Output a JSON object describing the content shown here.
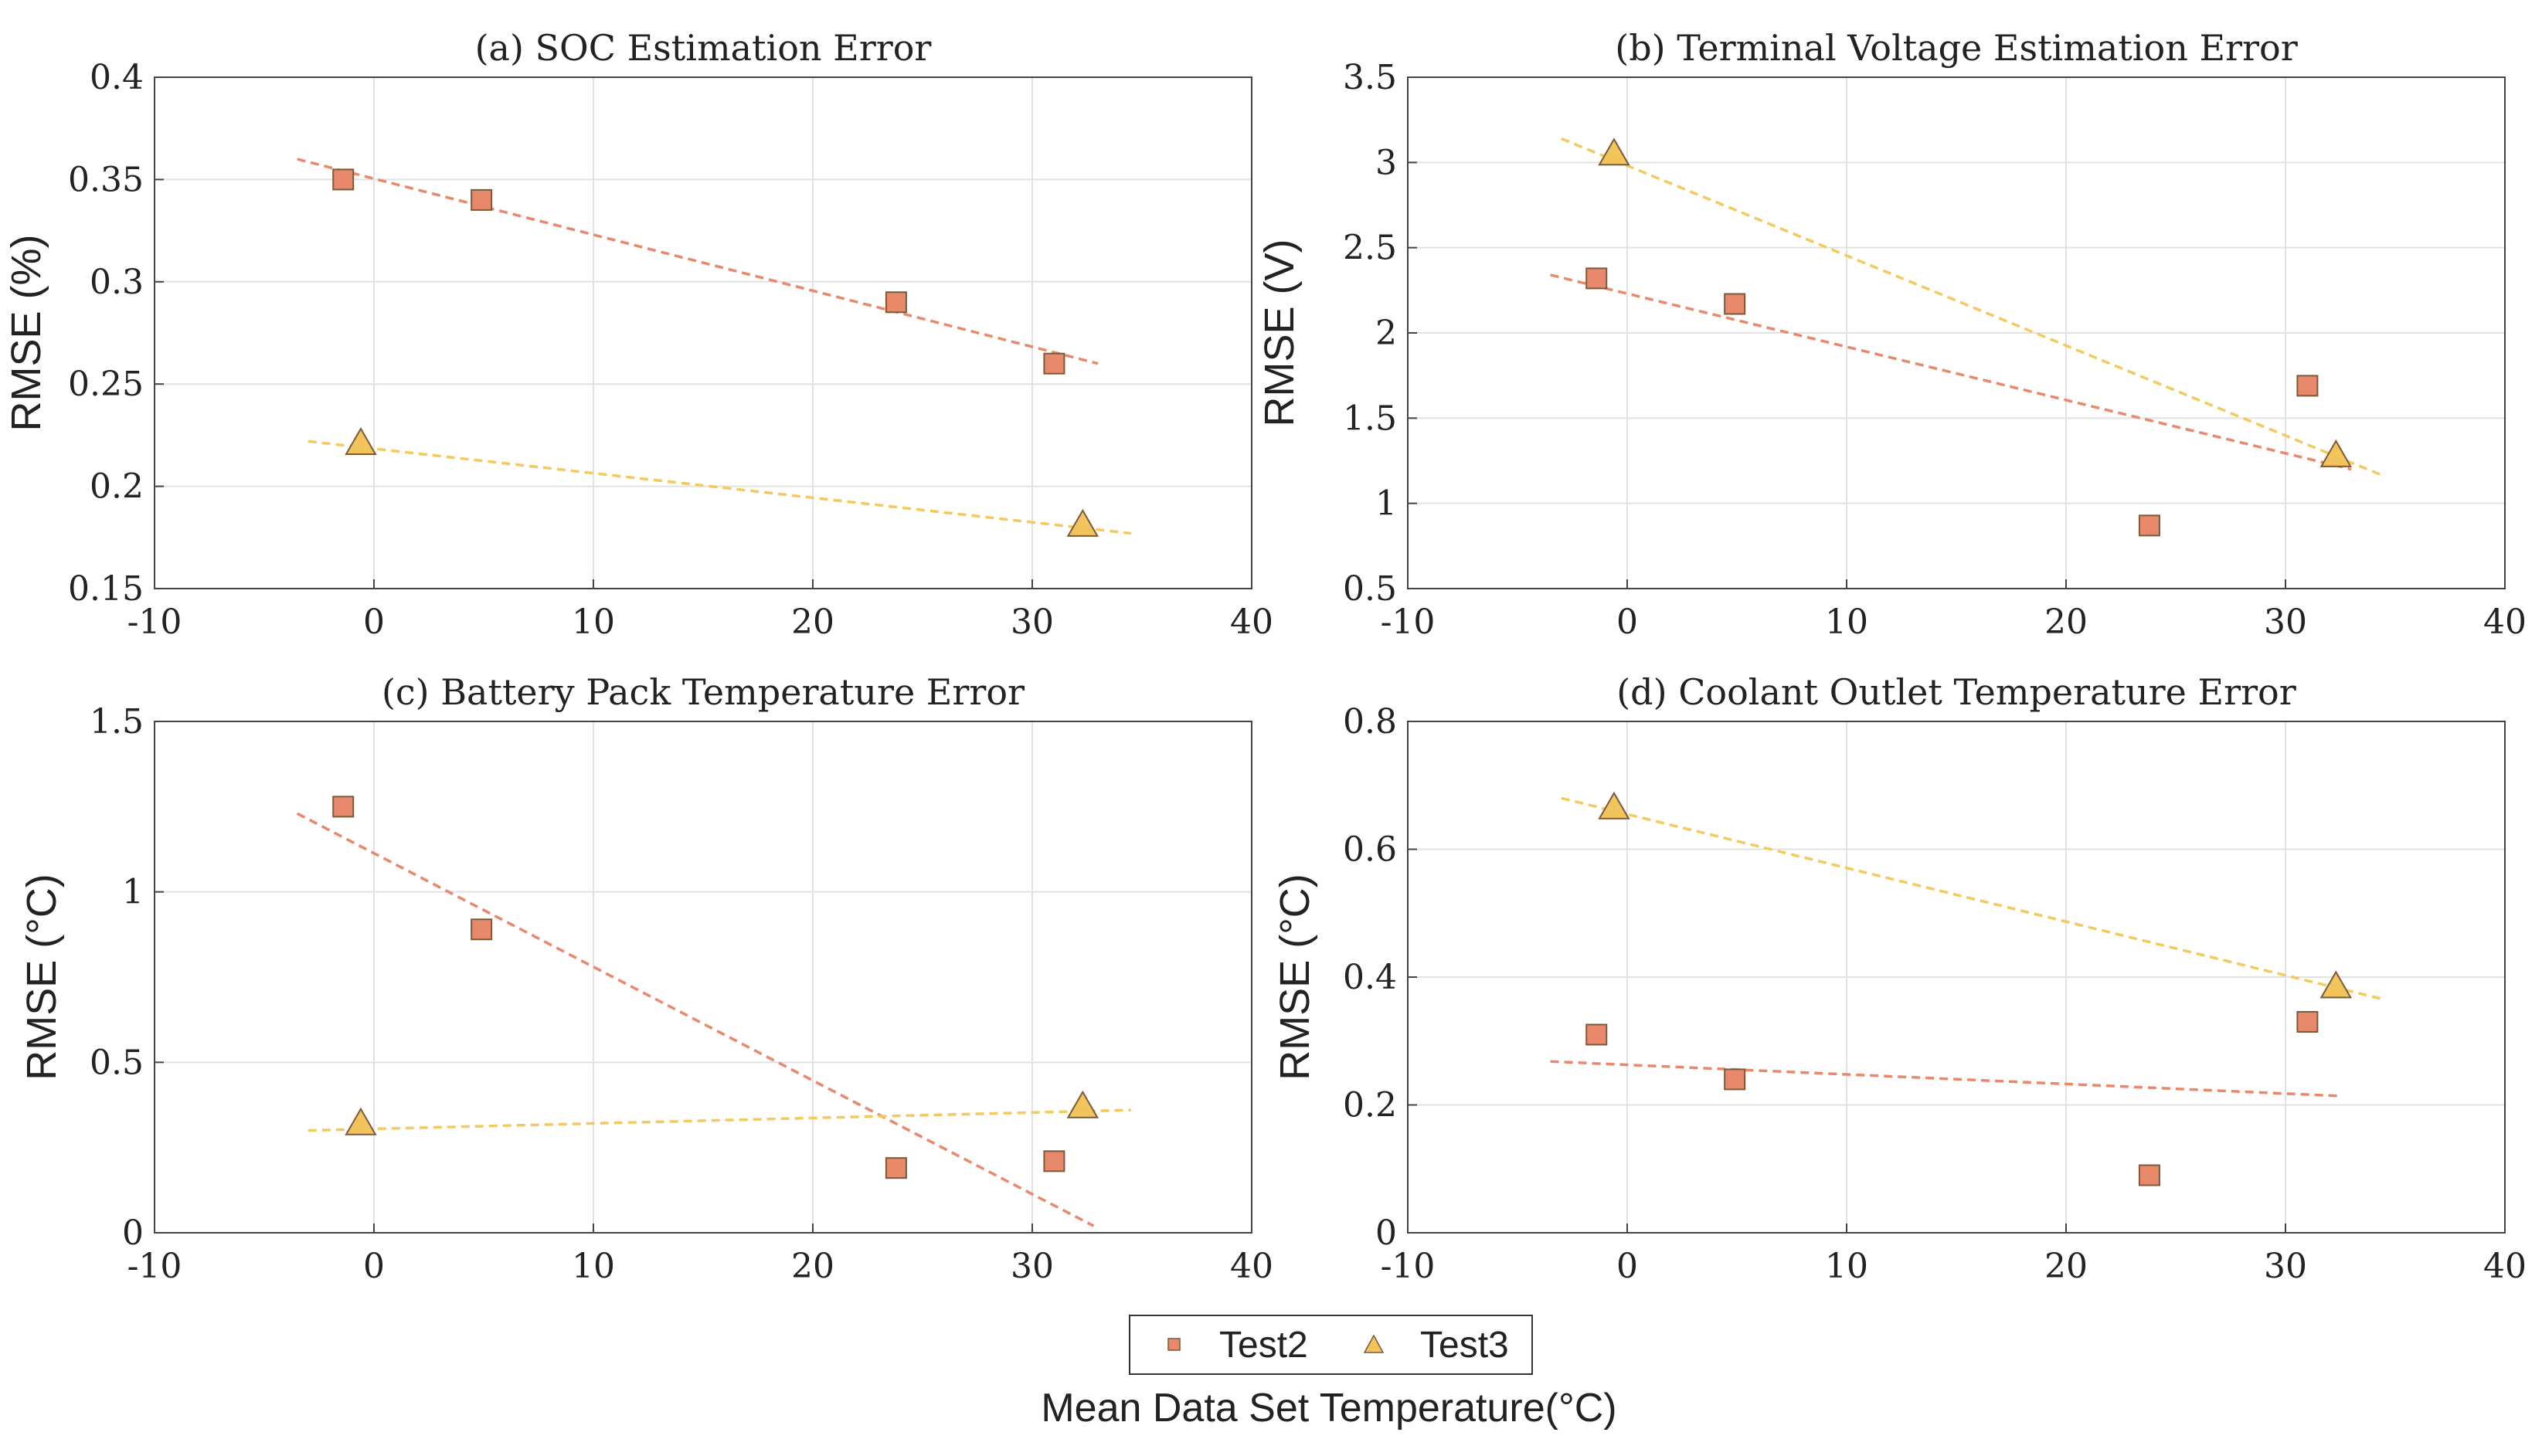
{
  "figure": {
    "xlabel": "Mean Data Set Temperature(°C)",
    "legend": [
      {
        "name": "Test2",
        "marker": "square",
        "color": "#e8896b"
      },
      {
        "name": "Test3",
        "marker": "triangle",
        "color": "#f2c45c"
      }
    ],
    "colors": {
      "test2_line": "#e8896b",
      "test3_line": "#f4c95e",
      "marker_edge": "#7a5a3a",
      "grid": "#e2e2e2",
      "axis": "#444444"
    }
  },
  "chart_data": [
    {
      "type": "scatter",
      "title": "(a) SOC Estimation Error",
      "xlabel": "Mean Data Set Temperature(°C)",
      "ylabel": "RMSE (%)",
      "xlim": [
        -10,
        40
      ],
      "ylim": [
        0.15,
        0.4
      ],
      "xticks": [
        -10,
        0,
        10,
        20,
        30,
        40
      ],
      "xtick_labels": [
        "-10",
        "0",
        "10",
        "20",
        "30",
        "40"
      ],
      "yticks": [
        0.15,
        0.2,
        0.25,
        0.3,
        0.35,
        0.4
      ],
      "ytick_labels": [
        "0.15",
        "0.2",
        "0.25",
        "0.3",
        "0.35",
        "0.4"
      ],
      "grid": true,
      "series": [
        {
          "name": "Test2",
          "marker": "square",
          "points": [
            [
              -1.4,
              0.35
            ],
            [
              4.9,
              0.34
            ],
            [
              23.8,
              0.29
            ],
            [
              31.0,
              0.26
            ]
          ],
          "trend": [
            [
              -3.5,
              0.36
            ],
            [
              33.0,
              0.26
            ]
          ]
        },
        {
          "name": "Test3",
          "marker": "triangle",
          "points": [
            [
              -0.6,
              0.221
            ],
            [
              32.3,
              0.181
            ]
          ],
          "trend": [
            [
              -3.0,
              0.222
            ],
            [
              34.5,
              0.177
            ]
          ]
        }
      ]
    },
    {
      "type": "scatter",
      "title": "(b) Terminal Voltage Estimation Error",
      "xlabel": "Mean Data Set Temperature(°C)",
      "ylabel": "RMSE (V)",
      "xlim": [
        -10,
        40
      ],
      "ylim": [
        0.5,
        3.5
      ],
      "xticks": [
        -10,
        0,
        10,
        20,
        30,
        40
      ],
      "xtick_labels": [
        "-10",
        "0",
        "10",
        "20",
        "30",
        "40"
      ],
      "yticks": [
        0.5,
        1,
        1.5,
        2,
        2.5,
        3,
        3.5
      ],
      "ytick_labels": [
        "0.5",
        "1",
        "1.5",
        "2",
        "2.5",
        "3",
        "3.5"
      ],
      "grid": true,
      "series": [
        {
          "name": "Test2",
          "marker": "square",
          "points": [
            [
              -1.4,
              2.32
            ],
            [
              4.9,
              2.17
            ],
            [
              23.8,
              0.87
            ],
            [
              31.0,
              1.69
            ]
          ],
          "trend": [
            [
              -3.5,
              2.34
            ],
            [
              33.0,
              1.2
            ]
          ]
        },
        {
          "name": "Test3",
          "marker": "triangle",
          "points": [
            [
              -0.6,
              3.05
            ],
            [
              32.3,
              1.28
            ]
          ],
          "trend": [
            [
              -3.0,
              3.14
            ],
            [
              34.5,
              1.16
            ]
          ]
        }
      ]
    },
    {
      "type": "scatter",
      "title": "(c) Battery Pack Temperature Error",
      "xlabel": "Mean Data Set Temperature(°C)",
      "ylabel": "RMSE (°C)",
      "xlim": [
        -10,
        40
      ],
      "ylim": [
        0,
        1.5
      ],
      "xticks": [
        -10,
        0,
        10,
        20,
        30,
        40
      ],
      "xtick_labels": [
        "-10",
        "0",
        "10",
        "20",
        "30",
        "40"
      ],
      "yticks": [
        0,
        0.5,
        1,
        1.5
      ],
      "ytick_labels": [
        "0",
        "0.5",
        "1",
        "1.5"
      ],
      "grid": true,
      "series": [
        {
          "name": "Test2",
          "marker": "square",
          "points": [
            [
              -1.4,
              1.25
            ],
            [
              4.9,
              0.89
            ],
            [
              23.8,
              0.19
            ],
            [
              31.0,
              0.21
            ]
          ],
          "trend": [
            [
              -3.5,
              1.23
            ],
            [
              32.8,
              0.02
            ]
          ]
        },
        {
          "name": "Test3",
          "marker": "triangle",
          "points": [
            [
              -0.6,
              0.32
            ],
            [
              32.3,
              0.37
            ]
          ],
          "trend": [
            [
              -3.0,
              0.3
            ],
            [
              34.5,
              0.36
            ]
          ]
        }
      ]
    },
    {
      "type": "scatter",
      "title": "(d) Coolant Outlet Temperature Error",
      "xlabel": "Mean Data Set Temperature(°C)",
      "ylabel": "RMSE (°C)",
      "xlim": [
        -10,
        40
      ],
      "ylim": [
        0,
        0.8
      ],
      "xticks": [
        -10,
        0,
        10,
        20,
        30,
        40
      ],
      "xtick_labels": [
        "-10",
        "0",
        "10",
        "20",
        "30",
        "40"
      ],
      "yticks": [
        0,
        0.2,
        0.4,
        0.6,
        0.8
      ],
      "ytick_labels": [
        "0",
        "0.2",
        "0.4",
        "0.6",
        "0.8"
      ],
      "grid": true,
      "series": [
        {
          "name": "Test2",
          "marker": "square",
          "points": [
            [
              -1.4,
              0.31
            ],
            [
              4.9,
              0.24
            ],
            [
              23.8,
              0.09
            ],
            [
              31.0,
              0.33
            ]
          ],
          "trend": [
            [
              -3.5,
              0.268
            ],
            [
              32.5,
              0.214
            ]
          ]
        },
        {
          "name": "Test3",
          "marker": "triangle",
          "points": [
            [
              -0.6,
              0.665
            ],
            [
              32.3,
              0.385
            ]
          ],
          "trend": [
            [
              -3.0,
              0.68
            ],
            [
              34.5,
              0.365
            ]
          ]
        }
      ]
    }
  ]
}
